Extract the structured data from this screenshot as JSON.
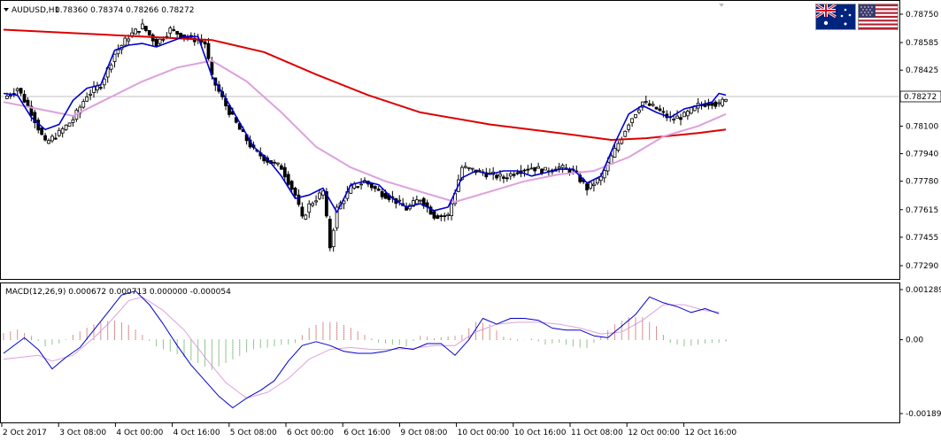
{
  "header": {
    "symbol": "AUDUSD,H1",
    "ohlc": "0.78360 0.78374 0.78266 0.78272"
  },
  "flags": {
    "base": {
      "country": "Australia",
      "icon": "australia-flag-icon"
    },
    "quote": {
      "country": "United States",
      "icon": "usa-flag-icon"
    }
  },
  "colors": {
    "bull_body": "#ffffff",
    "bear_body": "#000000",
    "candle_outline": "#000000",
    "ma_fast": "#0000cd",
    "ma_mid": "#dda0dd",
    "ma_slow": "#dd0000",
    "macd_hist_up": "#b22222",
    "macd_hist_down": "#228b22",
    "macd_line": "#0000cd",
    "signal_line": "#dda0dd",
    "grid": "#c0c0c0",
    "price_line": "#c0c0c0"
  },
  "chart_data": [
    {
      "type": "candlestick",
      "title": "AUDUSD,H1",
      "current_price": "0.78272",
      "x_ticks": [
        "2 Oct 2017",
        "3 Oct 08:00",
        "4 Oct 00:00",
        "4 Oct 16:00",
        "5 Oct 08:00",
        "6 Oct 00:00",
        "6 Oct 16:00",
        "9 Oct 08:00",
        "10 Oct 00:00",
        "10 Oct 16:00",
        "11 Oct 08:00",
        "12 Oct 00:00",
        "12 Oct 16:00"
      ],
      "y_ticks": [
        "0.78750",
        "0.78585",
        "0.78425",
        "0.78265",
        "0.78100",
        "0.77940",
        "0.77780",
        "0.77615",
        "0.77455",
        "0.77290"
      ],
      "ylim": [
        0.7729,
        0.7875
      ],
      "indicators": [
        "fast moving average (blue)",
        "medium moving average (plum)",
        "slow moving average (red)"
      ],
      "close_path": [
        [
          0,
          0.7826
        ],
        [
          4,
          0.7832
        ],
        [
          8,
          0.7818
        ],
        [
          12,
          0.78
        ],
        [
          16,
          0.7806
        ],
        [
          20,
          0.7814
        ],
        [
          24,
          0.7828
        ],
        [
          28,
          0.7834
        ],
        [
          32,
          0.7852
        ],
        [
          36,
          0.7862
        ],
        [
          40,
          0.7868
        ],
        [
          44,
          0.7858
        ],
        [
          48,
          0.7866
        ],
        [
          52,
          0.7862
        ],
        [
          56,
          0.786
        ],
        [
          58,
          0.7858
        ],
        [
          60,
          0.7838
        ],
        [
          64,
          0.7822
        ],
        [
          68,
          0.7808
        ],
        [
          72,
          0.7796
        ],
        [
          76,
          0.779
        ],
        [
          80,
          0.7786
        ],
        [
          84,
          0.777
        ],
        [
          86,
          0.7756
        ],
        [
          88,
          0.7764
        ],
        [
          92,
          0.7772
        ],
        [
          94,
          0.774
        ],
        [
          96,
          0.7762
        ],
        [
          100,
          0.7774
        ],
        [
          104,
          0.7778
        ],
        [
          108,
          0.7772
        ],
        [
          112,
          0.7768
        ],
        [
          116,
          0.7762
        ],
        [
          120,
          0.7768
        ],
        [
          124,
          0.7758
        ],
        [
          128,
          0.7758
        ],
        [
          132,
          0.7786
        ],
        [
          136,
          0.7784
        ],
        [
          140,
          0.7782
        ],
        [
          144,
          0.778
        ],
        [
          148,
          0.7784
        ],
        [
          152,
          0.7786
        ],
        [
          156,
          0.7784
        ],
        [
          160,
          0.7786
        ],
        [
          164,
          0.7784
        ],
        [
          168,
          0.7774
        ],
        [
          172,
          0.778
        ],
        [
          176,
          0.7796
        ],
        [
          180,
          0.7812
        ],
        [
          184,
          0.7824
        ],
        [
          188,
          0.782
        ],
        [
          192,
          0.7814
        ],
        [
          196,
          0.7816
        ],
        [
          200,
          0.7822
        ],
        [
          204,
          0.7824
        ],
        [
          206,
          0.7822
        ],
        [
          208,
          0.7827
        ]
      ],
      "ma_fast_path": [
        [
          0,
          0.7829
        ],
        [
          4,
          0.7828
        ],
        [
          8,
          0.7815
        ],
        [
          12,
          0.7808
        ],
        [
          16,
          0.7811
        ],
        [
          20,
          0.7825
        ],
        [
          24,
          0.7832
        ],
        [
          28,
          0.7834
        ],
        [
          32,
          0.7854
        ],
        [
          36,
          0.7857
        ],
        [
          40,
          0.7858
        ],
        [
          44,
          0.7856
        ],
        [
          48,
          0.7859
        ],
        [
          52,
          0.7862
        ],
        [
          56,
          0.7862
        ],
        [
          60,
          0.7839
        ],
        [
          64,
          0.7826
        ],
        [
          68,
          0.7812
        ],
        [
          72,
          0.7798
        ],
        [
          76,
          0.7791
        ],
        [
          80,
          0.7781
        ],
        [
          84,
          0.7768
        ],
        [
          88,
          0.777
        ],
        [
          92,
          0.7774
        ],
        [
          96,
          0.776
        ],
        [
          100,
          0.7776
        ],
        [
          104,
          0.7778
        ],
        [
          108,
          0.7776
        ],
        [
          112,
          0.7768
        ],
        [
          116,
          0.7763
        ],
        [
          120,
          0.7765
        ],
        [
          124,
          0.7761
        ],
        [
          128,
          0.7763
        ],
        [
          132,
          0.778
        ],
        [
          136,
          0.7784
        ],
        [
          140,
          0.7782
        ],
        [
          144,
          0.7784
        ],
        [
          148,
          0.7784
        ],
        [
          152,
          0.7781
        ],
        [
          156,
          0.7783
        ],
        [
          160,
          0.7785
        ],
        [
          164,
          0.7785
        ],
        [
          168,
          0.7777
        ],
        [
          172,
          0.7781
        ],
        [
          176,
          0.78
        ],
        [
          180,
          0.7817
        ],
        [
          184,
          0.7822
        ],
        [
          188,
          0.7818
        ],
        [
          192,
          0.7815
        ],
        [
          196,
          0.782
        ],
        [
          200,
          0.7822
        ],
        [
          204,
          0.7824
        ],
        [
          206,
          0.7829
        ],
        [
          208,
          0.7828
        ]
      ],
      "ma_mid_path": [
        [
          0,
          0.7824
        ],
        [
          10,
          0.782
        ],
        [
          20,
          0.7816
        ],
        [
          30,
          0.7826
        ],
        [
          40,
          0.7836
        ],
        [
          50,
          0.7844
        ],
        [
          60,
          0.7848
        ],
        [
          70,
          0.7836
        ],
        [
          80,
          0.7818
        ],
        [
          90,
          0.7798
        ],
        [
          100,
          0.7786
        ],
        [
          110,
          0.7778
        ],
        [
          120,
          0.7772
        ],
        [
          130,
          0.7766
        ],
        [
          140,
          0.7772
        ],
        [
          150,
          0.7778
        ],
        [
          160,
          0.7782
        ],
        [
          170,
          0.7784
        ],
        [
          180,
          0.7792
        ],
        [
          190,
          0.7804
        ],
        [
          200,
          0.781
        ],
        [
          208,
          0.7817
        ]
      ],
      "ma_slow_path": [
        [
          0,
          0.7866
        ],
        [
          20,
          0.7864
        ],
        [
          40,
          0.7862
        ],
        [
          60,
          0.786
        ],
        [
          75,
          0.7853
        ],
        [
          90,
          0.784
        ],
        [
          105,
          0.7828
        ],
        [
          120,
          0.7818
        ],
        [
          140,
          0.7811
        ],
        [
          160,
          0.7806
        ],
        [
          175,
          0.7802
        ],
        [
          185,
          0.7803
        ],
        [
          200,
          0.7806
        ],
        [
          208,
          0.7808
        ]
      ]
    },
    {
      "type": "macd",
      "title": "MACD(12,26,9) 0.000672 0.000713 0.000000 -0.000054",
      "y_ticks": [
        "0.001289",
        "0.00",
        "-0.001897"
      ],
      "ylim": [
        -0.001897,
        0.001289
      ],
      "histogram_path": [
        [
          0,
          0.00018
        ],
        [
          4,
          0.00025
        ],
        [
          8,
          0.0001
        ],
        [
          12,
          -0.00016
        ],
        [
          16,
          -0.0001
        ],
        [
          20,
          0.00012
        ],
        [
          24,
          0.00032
        ],
        [
          28,
          0.00045
        ],
        [
          32,
          0.0005
        ],
        [
          36,
          0.00038
        ],
        [
          40,
          0.00012
        ],
        [
          44,
          -0.00018
        ],
        [
          48,
          -0.0003
        ],
        [
          52,
          -0.00045
        ],
        [
          56,
          -0.0006
        ],
        [
          60,
          -0.00078
        ],
        [
          64,
          -0.0006
        ],
        [
          68,
          -0.00042
        ],
        [
          72,
          -0.00024
        ],
        [
          76,
          -0.0002
        ],
        [
          80,
          -0.00014
        ],
        [
          84,
          -8e-05
        ],
        [
          88,
          0.0003
        ],
        [
          92,
          0.00046
        ],
        [
          96,
          0.00046
        ],
        [
          100,
          0.0003
        ],
        [
          104,
          0.00012
        ],
        [
          108,
          -8e-05
        ],
        [
          112,
          -0.00012
        ],
        [
          116,
          -0.00016
        ],
        [
          120,
          0.0001
        ],
        [
          124,
          4e-05
        ],
        [
          128,
          8e-05
        ],
        [
          132,
          0.00012
        ],
        [
          136,
          0.00046
        ],
        [
          140,
          0.0004
        ],
        [
          144,
          8e-05
        ],
        [
          148,
          -2e-05
        ],
        [
          152,
          2e-05
        ],
        [
          156,
          -0.00012
        ],
        [
          160,
          -8e-05
        ],
        [
          164,
          -0.00018
        ],
        [
          168,
          -0.00022
        ],
        [
          172,
          8e-05
        ],
        [
          176,
          0.0004
        ],
        [
          180,
          0.00058
        ],
        [
          184,
          0.00058
        ],
        [
          188,
          0.00034
        ],
        [
          192,
          -8e-05
        ],
        [
          196,
          -0.00018
        ],
        [
          200,
          -0.00012
        ],
        [
          204,
          -8e-05
        ],
        [
          208,
          -5e-05
        ]
      ],
      "macd_path": [
        [
          0,
          -0.00035
        ],
        [
          6,
          5e-05
        ],
        [
          10,
          -0.00025
        ],
        [
          14,
          -0.00075
        ],
        [
          18,
          -0.00045
        ],
        [
          22,
          -0.0002
        ],
        [
          26,
          0.00025
        ],
        [
          30,
          0.0007
        ],
        [
          34,
          0.00115
        ],
        [
          38,
          0.00125
        ],
        [
          42,
          0.0009
        ],
        [
          46,
          0.0004
        ],
        [
          50,
          -0.00015
        ],
        [
          54,
          -0.00065
        ],
        [
          58,
          -0.00105
        ],
        [
          62,
          -0.00145
        ],
        [
          66,
          -0.00175
        ],
        [
          70,
          -0.0015
        ],
        [
          74,
          -0.0013
        ],
        [
          78,
          -0.00105
        ],
        [
          82,
          -0.00055
        ],
        [
          86,
          -0.00015
        ],
        [
          90,
          -5e-05
        ],
        [
          94,
          -0.00015
        ],
        [
          98,
          -0.0003
        ],
        [
          102,
          -0.00035
        ],
        [
          106,
          -0.00035
        ],
        [
          110,
          -0.0003
        ],
        [
          114,
          -0.0002
        ],
        [
          118,
          -0.00025
        ],
        [
          122,
          -0.0001
        ],
        [
          126,
          -0.0001
        ],
        [
          130,
          -0.0004
        ],
        [
          134,
          0.0
        ],
        [
          138,
          0.00055
        ],
        [
          142,
          0.0004
        ],
        [
          146,
          0.00055
        ],
        [
          150,
          0.00055
        ],
        [
          154,
          0.0005
        ],
        [
          158,
          0.0003
        ],
        [
          162,
          0.00025
        ],
        [
          166,
          0.00025
        ],
        [
          170,
          0.0001
        ],
        [
          174,
          5e-05
        ],
        [
          178,
          0.00035
        ],
        [
          182,
          0.00065
        ],
        [
          186,
          0.0011
        ],
        [
          190,
          0.00095
        ],
        [
          194,
          0.00085
        ],
        [
          198,
          0.0007
        ],
        [
          202,
          0.0008
        ],
        [
          206,
          0.00067
        ]
      ],
      "signal_path": [
        [
          0,
          -0.0005
        ],
        [
          10,
          -0.0004
        ],
        [
          14,
          -0.00055
        ],
        [
          20,
          -0.0004
        ],
        [
          26,
          5e-05
        ],
        [
          30,
          0.0004
        ],
        [
          36,
          0.001
        ],
        [
          40,
          0.0011
        ],
        [
          46,
          0.00075
        ],
        [
          52,
          0.00025
        ],
        [
          58,
          -0.00045
        ],
        [
          64,
          -0.0011
        ],
        [
          70,
          -0.0015
        ],
        [
          76,
          -0.00135
        ],
        [
          82,
          -0.001
        ],
        [
          88,
          -0.0005
        ],
        [
          94,
          -0.00025
        ],
        [
          100,
          -0.0002
        ],
        [
          106,
          -0.00025
        ],
        [
          112,
          -0.00025
        ],
        [
          118,
          -0.00022
        ],
        [
          124,
          -0.00015
        ],
        [
          130,
          -0.00015
        ],
        [
          136,
          0.0002
        ],
        [
          142,
          0.0004
        ],
        [
          148,
          0.00045
        ],
        [
          154,
          0.00045
        ],
        [
          160,
          0.0004
        ],
        [
          166,
          0.0003
        ],
        [
          172,
          0.00015
        ],
        [
          178,
          0.0002
        ],
        [
          184,
          0.0005
        ],
        [
          190,
          0.0009
        ],
        [
          196,
          0.0009
        ],
        [
          202,
          0.00075
        ],
        [
          206,
          0.00071
        ]
      ]
    }
  ]
}
